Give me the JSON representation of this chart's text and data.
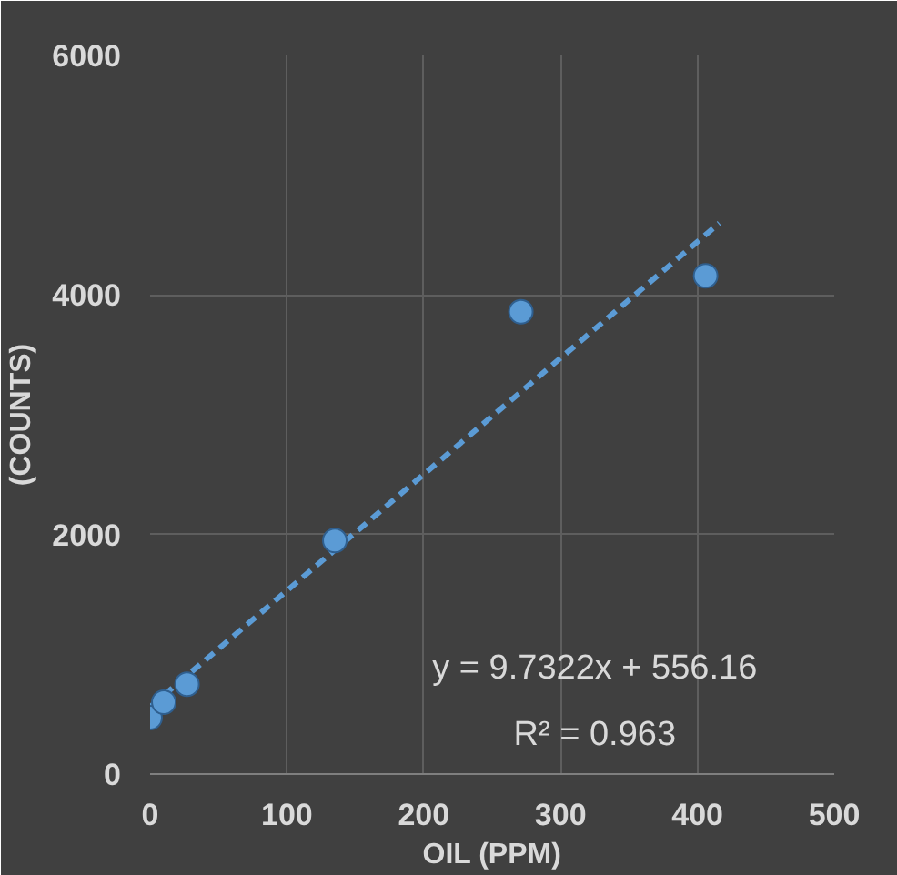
{
  "chart_data": {
    "type": "scatter",
    "xlabel": "OIL (PPM)",
    "ylabel": "(COUNTS)",
    "xlim": [
      0,
      500
    ],
    "ylim": [
      0,
      6000
    ],
    "xticks": [
      0,
      100,
      200,
      300,
      400,
      500
    ],
    "yticks": [
      0,
      2000,
      4000,
      6000
    ],
    "grid": true,
    "series": [
      {
        "color": "#5b9bd5",
        "marker": "circle",
        "x": [
          0,
          10,
          27,
          135,
          271,
          406
        ],
        "values": [
          470,
          600,
          750,
          1950,
          3860,
          4160
        ]
      },
      {
        "type": "line",
        "color": "#5b9bd5",
        "line_style": "dashed",
        "marker": "none",
        "x": [
          0,
          416
        ],
        "values": [
          560,
          4600
        ]
      }
    ],
    "annotations": [
      "y = 9.7322x + 556.16",
      "R² = 0.963"
    ]
  }
}
